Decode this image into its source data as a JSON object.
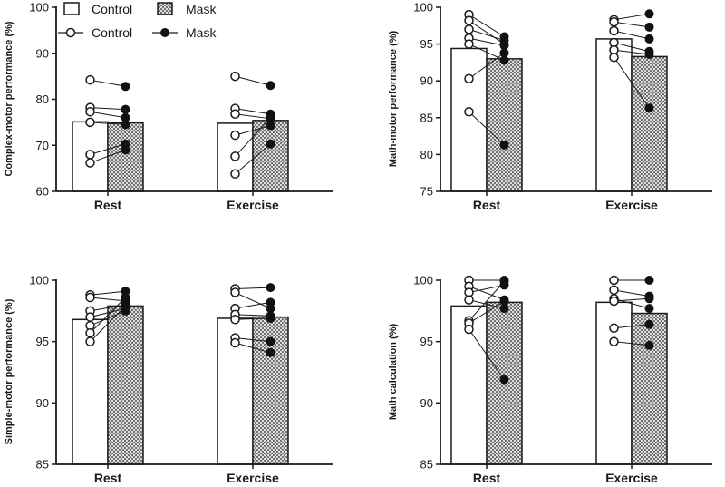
{
  "colors": {
    "axis": "#1a1a1a",
    "bar_fill_control": "#ffffff",
    "hatch": "#5c5c5c",
    "marker_mask": "#111111",
    "marker_control": "#ffffff"
  },
  "legend": {
    "bar_control": "Control",
    "bar_mask": "Mask",
    "point_control": "Control",
    "point_mask": "Mask"
  },
  "chart_data": [
    {
      "type": "bar",
      "ylabel": "Complex-motor performance (%)",
      "categories": [
        "Rest",
        "Exercise"
      ],
      "ylim": [
        60,
        100
      ],
      "yticks": [
        60,
        70,
        80,
        90,
        100
      ],
      "series": [
        {
          "name": "Control",
          "values": [
            75.1,
            74.8
          ]
        },
        {
          "name": "Mask",
          "values": [
            74.9,
            75.4
          ]
        }
      ],
      "paired": [
        [
          [
            84.2,
            82.8
          ],
          [
            78.2,
            77.8
          ],
          [
            77.3,
            76.0
          ],
          [
            75.0,
            74.5
          ],
          [
            68.0,
            70.3
          ],
          [
            66.2,
            69.0
          ]
        ],
        [
          [
            85.0,
            83.0
          ],
          [
            78.0,
            76.8
          ],
          [
            76.8,
            75.8
          ],
          [
            72.2,
            74.3
          ],
          [
            67.6,
            76.0
          ],
          [
            63.8,
            70.3
          ]
        ]
      ]
    },
    {
      "type": "bar",
      "ylabel": "Math-motor performance (%)",
      "categories": [
        "Rest",
        "Exercise"
      ],
      "ylim": [
        75,
        100
      ],
      "yticks": [
        75,
        80,
        85,
        90,
        95,
        100
      ],
      "series": [
        {
          "name": "Control",
          "values": [
            94.4,
            95.7
          ]
        },
        {
          "name": "Mask",
          "values": [
            93.0,
            93.3
          ]
        }
      ],
      "paired": [
        [
          [
            99.0,
            96.0
          ],
          [
            98.2,
            95.0
          ],
          [
            97.0,
            95.5
          ],
          [
            95.8,
            94.8
          ],
          [
            95.0,
            92.8
          ],
          [
            90.3,
            93.8
          ],
          [
            85.8,
            81.3
          ]
        ],
        [
          [
            98.3,
            99.1
          ],
          [
            98.0,
            97.3
          ],
          [
            96.8,
            95.7
          ],
          [
            95.2,
            94.0
          ],
          [
            94.2,
            93.6
          ],
          [
            93.2,
            86.3
          ]
        ]
      ]
    },
    {
      "type": "bar",
      "ylabel": "Simple-motor performance (%)",
      "categories": [
        "Rest",
        "Exercise"
      ],
      "ylim": [
        85,
        100
      ],
      "yticks": [
        85,
        90,
        95,
        100
      ],
      "series": [
        {
          "name": "Control",
          "values": [
            96.8,
            96.9
          ]
        },
        {
          "name": "Mask",
          "values": [
            97.9,
            97.0
          ]
        }
      ],
      "paired": [
        [
          [
            98.8,
            99.1
          ],
          [
            98.6,
            98.3
          ],
          [
            97.5,
            98.0
          ],
          [
            97.0,
            97.7
          ],
          [
            96.3,
            97.5
          ],
          [
            95.7,
            98.6
          ],
          [
            95.0,
            97.9
          ]
        ],
        [
          [
            99.3,
            99.4
          ],
          [
            99.0,
            97.7
          ],
          [
            97.7,
            98.2
          ],
          [
            97.2,
            97.1
          ],
          [
            96.8,
            96.9
          ],
          [
            95.3,
            95.0
          ],
          [
            94.9,
            94.1
          ]
        ]
      ]
    },
    {
      "type": "bar",
      "ylabel": "Math calculation  (%)",
      "categories": [
        "Rest",
        "Exercise"
      ],
      "ylim": [
        85,
        100
      ],
      "yticks": [
        85,
        90,
        95,
        100
      ],
      "series": [
        {
          "name": "Control",
          "values": [
            97.9,
            98.2
          ]
        },
        {
          "name": "Mask",
          "values": [
            98.2,
            97.3
          ]
        }
      ],
      "paired": [
        [
          [
            100.0,
            100.0
          ],
          [
            99.5,
            98.4
          ],
          [
            99.0,
            99.6
          ],
          [
            98.4,
            97.7
          ],
          [
            96.7,
            99.9
          ],
          [
            96.5,
            98.3
          ],
          [
            96.0,
            91.9
          ]
        ],
        [
          [
            100.0,
            100.0
          ],
          [
            99.2,
            98.7
          ],
          [
            98.5,
            97.7
          ],
          [
            98.3,
            98.5
          ],
          [
            96.1,
            96.4
          ],
          [
            95.0,
            94.7
          ]
        ]
      ]
    }
  ]
}
